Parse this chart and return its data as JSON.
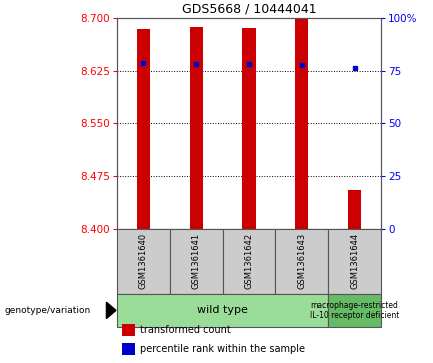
{
  "title": "GDS5668 / 10444041",
  "samples": [
    "GSM1361640",
    "GSM1361641",
    "GSM1361642",
    "GSM1361643",
    "GSM1361644"
  ],
  "bar_bottom": 8.4,
  "bar_tops": [
    8.685,
    8.687,
    8.686,
    8.7,
    8.455
  ],
  "percentile_values": [
    8.636,
    8.634,
    8.635,
    8.633,
    8.629
  ],
  "ylim": [
    8.4,
    8.7
  ],
  "y2lim": [
    0,
    100
  ],
  "yticks": [
    8.4,
    8.475,
    8.55,
    8.625,
    8.7
  ],
  "y2ticks": [
    0,
    25,
    50,
    75,
    100
  ],
  "y2ticklabels": [
    "0",
    "25",
    "50",
    "75",
    "100%"
  ],
  "bar_color": "#cc0000",
  "percentile_color": "#0000cc",
  "plot_bg": "#ffffff",
  "outer_bg": "#ffffff",
  "sample_box_color": "#cccccc",
  "wt_group_count": 4,
  "mut_group_count": 1,
  "wt_label": "wild type",
  "mut_label": "macrophage-restricted\nIL-10 receptor deficient",
  "wt_color": "#99dd99",
  "mut_color": "#66bb66",
  "legend_red": "transformed count",
  "legend_blue": "percentile rank within the sample",
  "genotype_label": "genotype/variation",
  "bar_width": 0.25
}
